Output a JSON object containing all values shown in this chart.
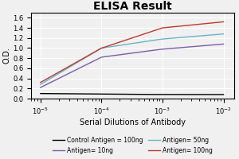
{
  "title": "ELISA Result",
  "ylabel": "O.D.",
  "xlabel": "Serial Dilutions of Antibody",
  "x_values": [
    0.01,
    0.001,
    0.0001,
    1e-05
  ],
  "lines": [
    {
      "label": "Control Antigen = 100ng",
      "color": "#000000",
      "y_values": [
        0.08,
        0.08,
        0.09,
        0.1
      ]
    },
    {
      "label": "Antigen= 10ng",
      "color": "#7b5ea7",
      "y_values": [
        1.08,
        0.98,
        0.82,
        0.22
      ]
    },
    {
      "label": "Antigen= 50ng",
      "color": "#6ab4c8",
      "y_values": [
        1.28,
        1.18,
        1.0,
        0.28
      ]
    },
    {
      "label": "Antigen= 100ng",
      "color": "#c0392b",
      "y_values": [
        1.52,
        1.4,
        1.0,
        0.32
      ]
    }
  ],
  "ylim": [
    0,
    1.7
  ],
  "yticks": [
    0,
    0.2,
    0.4,
    0.6,
    0.8,
    1.0,
    1.2,
    1.4,
    1.6
  ],
  "background_color": "#f0f0f0",
  "grid_color": "#ffffff",
  "title_fontsize": 10,
  "label_fontsize": 7,
  "tick_fontsize": 6,
  "legend_fontsize": 5.5
}
